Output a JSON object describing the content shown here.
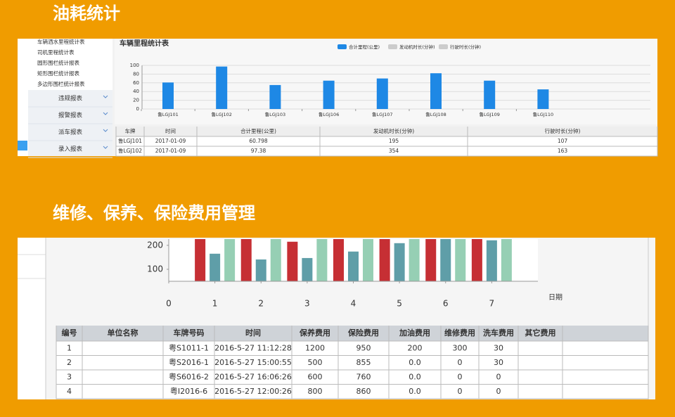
{
  "sections": [
    {
      "title": "油耗统计",
      "menu": {
        "items": [
          "车辆洒水里程统计表",
          "司机里程统计表",
          "圆形围栏统计报表",
          "矩形围栏统计报表",
          "多边形围栏统计报表"
        ],
        "groups": [
          "违规报表",
          "报警报表",
          "派车报表",
          "录入报表"
        ]
      },
      "chart": {
        "type": "bar",
        "title": "车辆里程统计表",
        "legend": [
          {
            "name": "合计里程(公里)",
            "color": "#1e88e5"
          },
          {
            "name": "发动机时长(分钟)",
            "color": "#cccccc"
          },
          {
            "name": "行驶时长(分钟)",
            "color": "#cccccc"
          }
        ],
        "categories": [
          "鲁LGJ101",
          "鲁LGJ102",
          "鲁LGJ103",
          "鲁LGJ106",
          "鲁LGJ107",
          "鲁LGJ108",
          "鲁LGJ109",
          "鲁LGJ110"
        ],
        "values": [
          60.798,
          97.38,
          55,
          65,
          70,
          82,
          65,
          45
        ],
        "color": "#1e88e5",
        "ylim": [
          0,
          100
        ],
        "yticks": [
          0,
          20,
          40,
          60,
          80,
          100
        ],
        "grid": true
      },
      "table": {
        "columns": [
          "车牌",
          "时间",
          "合计里程(公里)",
          "发动机时长(分钟)",
          "行驶时长(分钟)"
        ],
        "rows": [
          [
            "鲁LGJ101",
            "2017-01-09",
            "60.798",
            "195",
            "107"
          ],
          [
            "鲁LGJ102",
            "2017-01-09",
            "97.38",
            "354",
            "163"
          ]
        ]
      }
    },
    {
      "title": "维修、保养、保险费用管理",
      "chart": {
        "type": "bar",
        "x": [
          1,
          2,
          3,
          4,
          5,
          6,
          7
        ],
        "series": [
          {
            "color": "#c62f34",
            "values": [
              230,
              230,
              215,
              230,
              230,
              230,
              230
            ]
          },
          {
            "color": "#5f9ea8",
            "values": [
              165,
              141,
              147,
              174,
              209,
              230,
              221
            ]
          },
          {
            "color": "#96cfb4",
            "values": [
              230,
              230,
              230,
              230,
              230,
              230,
              230
            ]
          }
        ],
        "ylim": [
          50,
          226
        ],
        "yticks": [
          100,
          200
        ],
        "xlim": [
          0,
          8
        ],
        "xticks": [
          0,
          1,
          2,
          3,
          4,
          5,
          6,
          7
        ],
        "xlabel": "日期"
      },
      "table": {
        "columns": [
          "编号",
          "单位名称",
          "车牌号码",
          "时间",
          "保养费用",
          "保险费用",
          "加油费用",
          "维修费用",
          "洗车费用",
          "其它费用"
        ],
        "rows": [
          [
            "1",
            null,
            "粤S1011-1",
            "2016-5-27 11:12:28",
            "1200",
            "950",
            "200",
            "300",
            "30",
            null
          ],
          [
            "2",
            null,
            "粤S2016-1",
            "2016-5-27 15:00:55",
            "500",
            "855",
            "0.0",
            "0",
            "30",
            null
          ],
          [
            "3",
            null,
            "粤S6016-2",
            "2016-5-27 16:06:26",
            "600",
            "760",
            "0.0",
            "0",
            "0",
            null
          ],
          [
            "4",
            null,
            "粤I2016-6",
            "2016-5-27 12:00:26",
            "800",
            "860",
            "0.0",
            "0",
            "0",
            null
          ]
        ]
      }
    }
  ]
}
